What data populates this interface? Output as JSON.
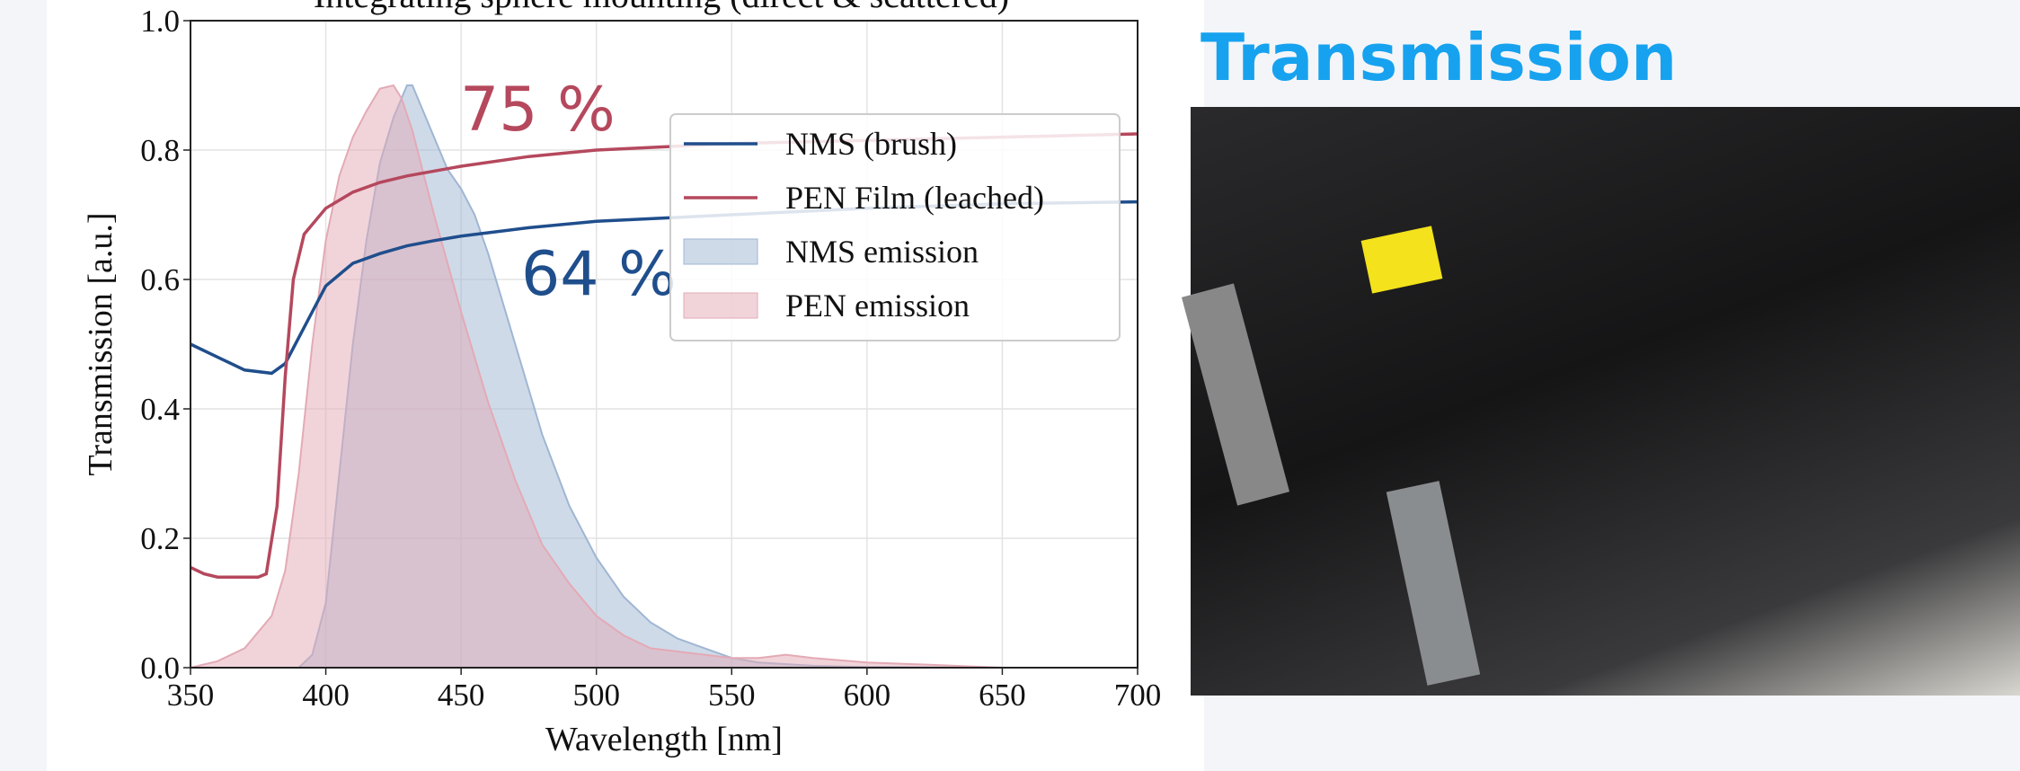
{
  "heading": "Transmission",
  "chart_data": {
    "type": "line",
    "title": "Integrating sphere mounting (direct & scattered)",
    "x_label": "Wavelength [nm]",
    "y_label": "Transmission [a.u.]",
    "xlim": [
      350,
      700
    ],
    "xticks": [
      350,
      400,
      450,
      500,
      550,
      600,
      650,
      700
    ],
    "ylim": [
      0,
      1
    ],
    "yticks": [
      {
        "value": 0,
        "label": "0.0"
      },
      0.2,
      0.4,
      0.6,
      0.8,
      {
        "value": 1,
        "label": "1.0"
      }
    ],
    "grid": true,
    "legend_loc": "center right",
    "annotations": [
      {
        "text": "75 %",
        "color": "#b5485d"
      },
      {
        "text": "64 %",
        "color": "#1f4e8c"
      }
    ],
    "series": [
      {
        "name": "NMS (brush)",
        "kind": "line",
        "color": "#1f4e8c",
        "x": [
          350,
          360,
          370,
          380,
          385,
          390,
          395,
          400,
          410,
          420,
          430,
          440,
          450,
          475,
          500,
          550,
          600,
          650,
          700
        ],
        "values": [
          0.5,
          0.48,
          0.46,
          0.455,
          0.47,
          0.51,
          0.55,
          0.59,
          0.625,
          0.64,
          0.652,
          0.66,
          0.667,
          0.68,
          0.69,
          0.7,
          0.71,
          0.717,
          0.72
        ]
      },
      {
        "name": "PEN Film (leached)",
        "kind": "line",
        "color": "#b5485d",
        "x": [
          350,
          355,
          360,
          375,
          378,
          382,
          385,
          388,
          392,
          400,
          410,
          420,
          430,
          450,
          475,
          500,
          550,
          600,
          650,
          700
        ],
        "values": [
          0.155,
          0.145,
          0.14,
          0.14,
          0.145,
          0.25,
          0.45,
          0.6,
          0.67,
          0.71,
          0.735,
          0.75,
          0.76,
          0.775,
          0.79,
          0.8,
          0.81,
          0.815,
          0.82,
          0.825
        ]
      },
      {
        "name": "NMS emission",
        "kind": "area",
        "color": "#9fb6d3",
        "x": [
          350,
          390,
          395,
          400,
          405,
          410,
          415,
          420,
          425,
          430,
          432,
          435,
          440,
          445,
          450,
          455,
          460,
          470,
          480,
          490,
          500,
          510,
          520,
          530,
          540,
          550,
          560,
          580,
          600,
          650
        ],
        "values": [
          0,
          0,
          0.02,
          0.1,
          0.3,
          0.5,
          0.66,
          0.78,
          0.85,
          0.9,
          0.9,
          0.87,
          0.82,
          0.77,
          0.74,
          0.7,
          0.64,
          0.5,
          0.36,
          0.25,
          0.17,
          0.11,
          0.07,
          0.045,
          0.03,
          0.015,
          0.008,
          0.003,
          0.001,
          0
        ]
      },
      {
        "name": "PEN emission",
        "kind": "area",
        "color": "#e3aab5",
        "x": [
          350,
          360,
          370,
          380,
          385,
          390,
          395,
          400,
          405,
          410,
          415,
          420,
          425,
          428,
          432,
          440,
          450,
          460,
          470,
          480,
          490,
          500,
          510,
          520,
          530,
          540,
          550,
          560,
          570,
          580,
          600,
          620,
          650
        ],
        "values": [
          0,
          0.01,
          0.03,
          0.08,
          0.15,
          0.3,
          0.5,
          0.66,
          0.76,
          0.82,
          0.86,
          0.895,
          0.9,
          0.88,
          0.83,
          0.7,
          0.55,
          0.41,
          0.29,
          0.19,
          0.13,
          0.08,
          0.05,
          0.03,
          0.025,
          0.02,
          0.015,
          0.015,
          0.02,
          0.015,
          0.008,
          0.005,
          0
        ]
      }
    ]
  }
}
